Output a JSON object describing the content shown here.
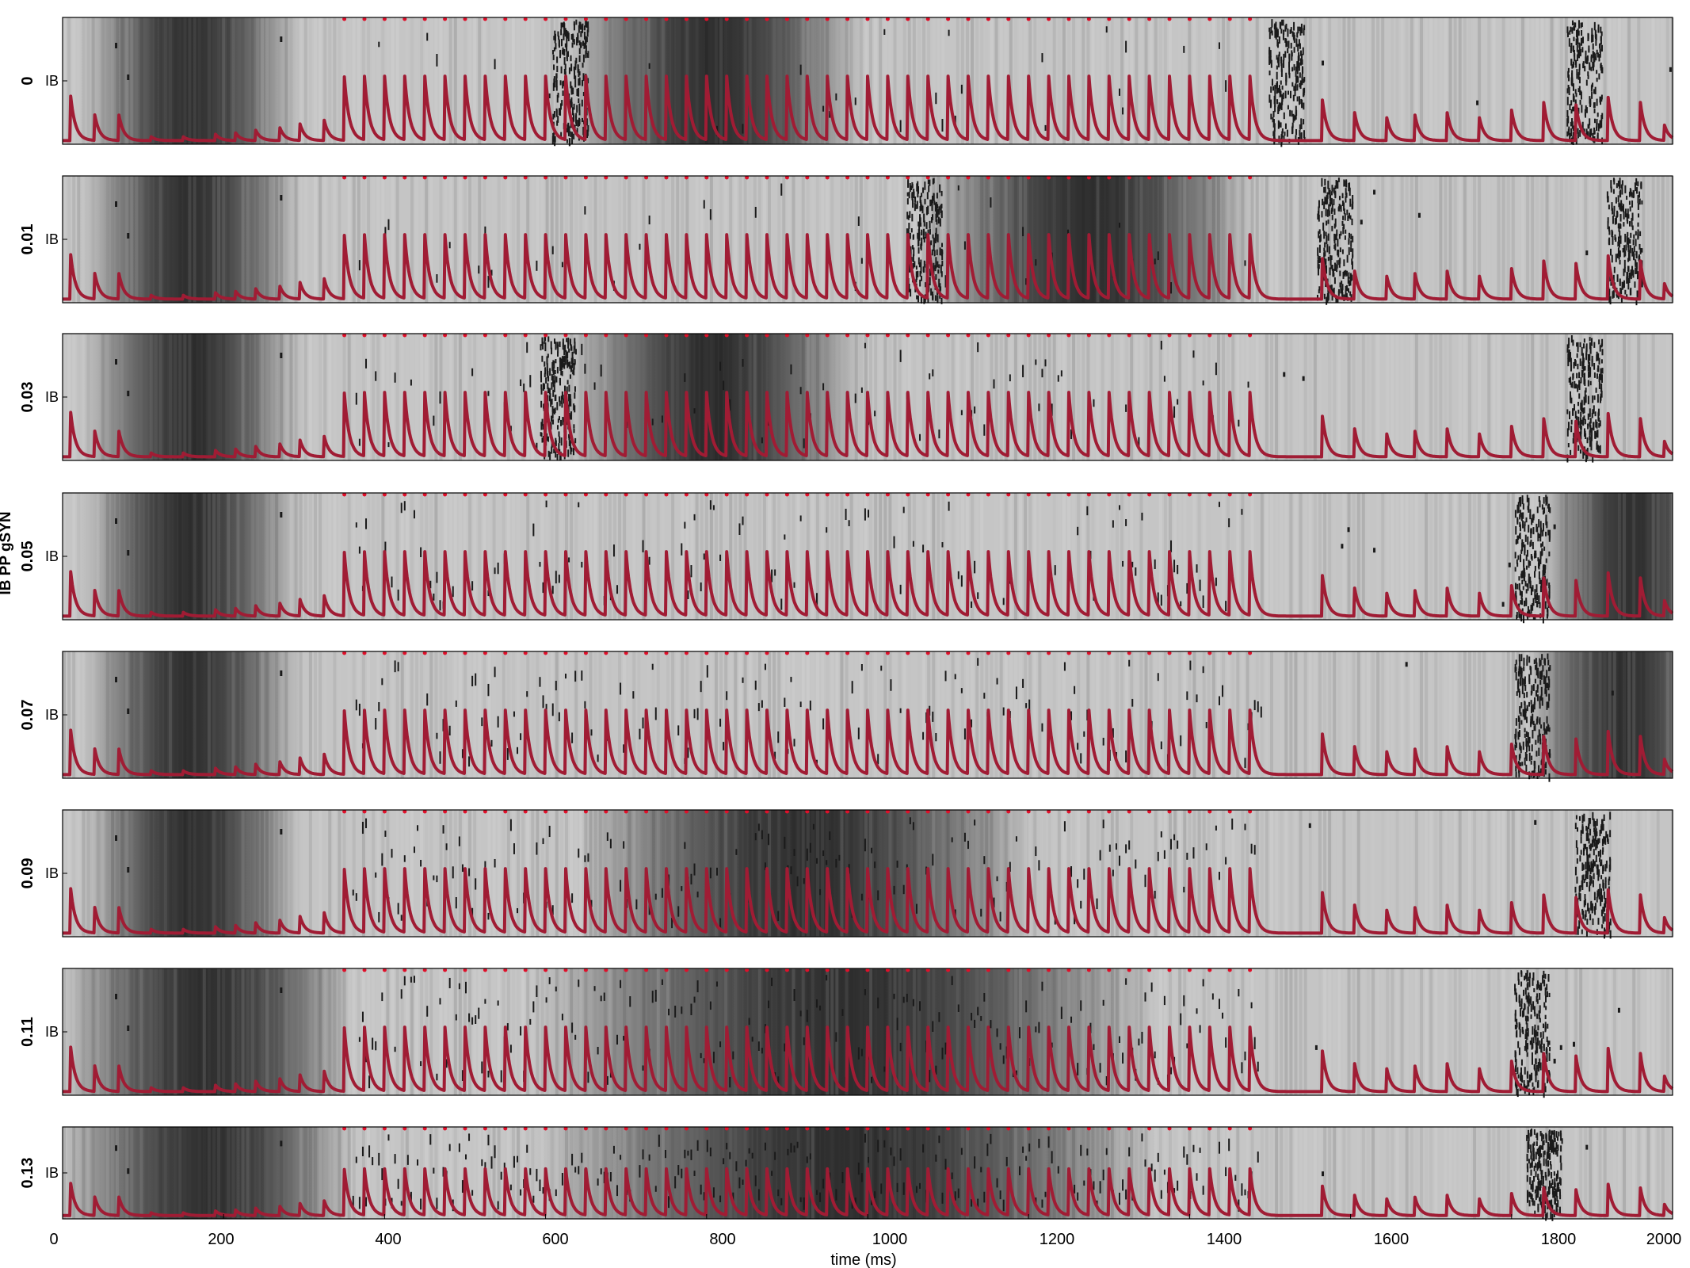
{
  "figure": {
    "ylabel": "IB PP gSYN",
    "xlabel": "time (ms)",
    "x_ticks": [
      "0",
      "200",
      "400",
      "600",
      "800",
      "1000",
      "1200",
      "1400",
      "1600",
      "1800",
      "2000"
    ]
  },
  "chart_data": {
    "type": "heatmap",
    "layers": [
      "grayscale background (slow variable)",
      "black spike raster",
      "red trace (synaptic drive)",
      "red input-pulse dots"
    ],
    "xlabel": "time (ms)",
    "ylabel": "IB PP gSYN",
    "xlim": [
      0,
      2000
    ],
    "x_ticks": [
      0,
      200,
      400,
      600,
      800,
      1000,
      1200,
      1400,
      1600,
      1800,
      2000
    ],
    "panel_ytick_label": "IB",
    "grid": false,
    "legend": "none",
    "colors": {
      "trace": "#a01c34",
      "pulse_dots": "#e0102a",
      "raster": "#1a1a1a",
      "background_min": "#303030",
      "background_max": "#e2e2e2"
    },
    "input_pulse_window_ms": [
      350,
      1485
    ],
    "input_pulse_period_ms": 25,
    "pre_stimulus_peaks_ms": [
      10,
      40,
      70
    ],
    "panels": [
      {
        "value": "0",
        "raster_bursts_ms": [
          630,
          1520,
          1890
        ],
        "dark_regions_ms": [
          [
            90,
            230
          ],
          [
            690,
            930
          ]
        ]
      },
      {
        "value": "0.01",
        "raster_bursts_ms": [
          1070,
          1580,
          1940
        ],
        "dark_regions_ms": [
          [
            90,
            230
          ],
          [
            1130,
            1420
          ]
        ]
      },
      {
        "value": "0.03",
        "raster_bursts_ms": [
          615,
          1890
        ],
        "dark_regions_ms": [
          [
            90,
            230
          ],
          [
            690,
            930
          ]
        ]
      },
      {
        "value": "0.05",
        "raster_bursts_ms": [
          1825
        ],
        "dark_regions_ms": [
          [
            90,
            230
          ],
          [
            1900,
            2000
          ]
        ]
      },
      {
        "value": "0.07",
        "raster_bursts_ms": [
          1825
        ],
        "dark_regions_ms": [
          [
            90,
            230
          ],
          [
            1880,
            2000
          ]
        ]
      },
      {
        "value": "0.09",
        "raster_bursts_ms": [
          1900
        ],
        "dark_regions_ms": [
          [
            90,
            230
          ],
          [
            700,
            1150
          ]
        ]
      },
      {
        "value": "0.11",
        "raster_bursts_ms": [
          1825
        ],
        "dark_regions_ms": [
          [
            60,
            300
          ],
          [
            650,
            1300
          ]
        ]
      },
      {
        "value": "0.13",
        "raster_bursts_ms": [
          1840
        ],
        "dark_regions_ms": [
          [
            60,
            300
          ],
          [
            650,
            1300
          ]
        ]
      }
    ]
  }
}
